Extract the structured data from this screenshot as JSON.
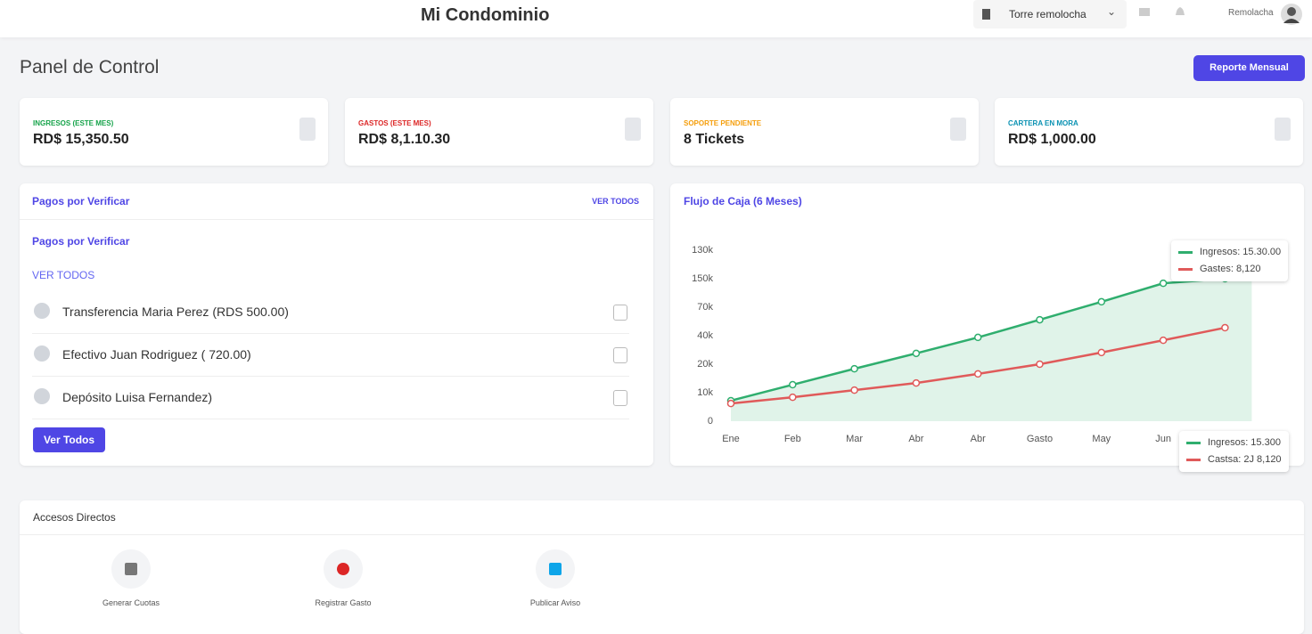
{
  "header": {
    "title": "Mi Condominio",
    "building": "Torre remolocha",
    "user": "Remolacha"
  },
  "page": {
    "title": "Panel de Control",
    "report_button": "Reporte Mensual"
  },
  "stats": [
    {
      "label": "INGRESOS (ESTE MES)",
      "value": "RD$ 15,350.50",
      "color": "#16a34a"
    },
    {
      "label": "GASTOS (ESTE MES)",
      "value": "RD$ 8,1.10.30",
      "color": "#dc2626"
    },
    {
      "label": "SOPORTE PENDIENTE",
      "value": "8 Tickets",
      "color": "#f59e0b"
    },
    {
      "label": "CARTERA EN MORA",
      "value": "RD$ 1,000.00",
      "color": "#0891b2"
    }
  ],
  "payments": {
    "title": "Pagos por Verificar",
    "view_all": "VER TODOS",
    "subtitle": "Pagos por Verificar",
    "link": "VER TODOS",
    "items": [
      "Transferencia Maria Perez (RDS 500.00)",
      "Efectivo Juan Rodriguez ( 720.00)",
      "Depósito Luisa Fernandez)"
    ],
    "button": "Ver Todos"
  },
  "cash_flow": {
    "title": "Flujo de Caja (6 Meses)",
    "chart": {
      "type": "line",
      "categories": [
        "Ene",
        "Feb",
        "Mar",
        "Abr",
        "Abr",
        "Gasto",
        "May",
        "Jun",
        null
      ],
      "y_categories": [
        "0",
        "10k",
        "20k",
        "40k",
        "70k",
        "150k",
        "130k"
      ],
      "series": [
        {
          "name": "Ingresos",
          "color": "#2fae6e",
          "values": [
            0.72,
            1.28,
            1.84,
            2.38,
            2.94,
            3.56,
            4.19,
            4.84,
            5.0
          ]
        },
        {
          "name": "Gastos",
          "color": "#e05a5a",
          "values": [
            0.62,
            0.84,
            1.09,
            1.34,
            1.66,
            2.0,
            2.41,
            2.84,
            3.28
          ]
        }
      ],
      "tooltips": [
        [
          "Ingresos: 15.30.00",
          "Gastes: 8,120"
        ],
        [
          "Ingresos: 15.300",
          "Castsa: 2J 8,120"
        ]
      ]
    }
  },
  "shortcuts": {
    "title": "Accesos Directos",
    "items": [
      "Generar Cuotas",
      "Registrar Gasto",
      "Publicar Aviso"
    ]
  }
}
